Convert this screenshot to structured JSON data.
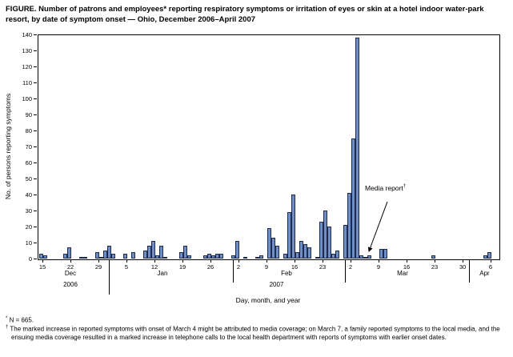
{
  "title": "FIGURE. Number of patrons and employees* reporting respiratory symptoms or irritation of eyes or skin at a hotel indoor water-park resort, by date of symptom onset — Ohio, December 2006–April 2007",
  "chart_data": {
    "type": "bar",
    "title": "Number of patrons and employees reporting respiratory symptoms or irritation of eyes or skin, by date of symptom onset",
    "xlabel": "Day, month, and year",
    "ylabel": "No. of persons reporting symptoms",
    "ylim": [
      0,
      140
    ],
    "ytick_step": 10,
    "grid": false,
    "bar_color": "#6d8ec6",
    "bar_border_color": "#1f2b4d",
    "x_ticks": [
      {
        "m": "Dec",
        "d": 15
      },
      {
        "m": "Dec",
        "d": 22
      },
      {
        "m": "Dec",
        "d": 29
      },
      {
        "m": "Jan",
        "d": 5
      },
      {
        "m": "Jan",
        "d": 12
      },
      {
        "m": "Jan",
        "d": 19
      },
      {
        "m": "Jan",
        "d": 26
      },
      {
        "m": "Feb",
        "d": 2
      },
      {
        "m": "Feb",
        "d": 9
      },
      {
        "m": "Feb",
        "d": 16
      },
      {
        "m": "Feb",
        "d": 23
      },
      {
        "m": "Mar",
        "d": 2
      },
      {
        "m": "Mar",
        "d": 9
      },
      {
        "m": "Mar",
        "d": 16
      },
      {
        "m": "Mar",
        "d": 23
      },
      {
        "m": "Mar",
        "d": 30
      },
      {
        "m": "Apr",
        "d": 6
      }
    ],
    "month_labels": [
      "Dec",
      "Jan",
      "Feb",
      "Mar",
      "Apr"
    ],
    "year_labels": [
      "2006",
      "2007"
    ],
    "bars": [
      {
        "m": "Dec",
        "d": 15,
        "v": 3
      },
      {
        "m": "Dec",
        "d": 16,
        "v": 2
      },
      {
        "m": "Dec",
        "d": 21,
        "v": 3
      },
      {
        "m": "Dec",
        "d": 22,
        "v": 7
      },
      {
        "m": "Dec",
        "d": 25,
        "v": 1
      },
      {
        "m": "Dec",
        "d": 26,
        "v": 1
      },
      {
        "m": "Dec",
        "d": 29,
        "v": 4
      },
      {
        "m": "Dec",
        "d": 30,
        "v": 1
      },
      {
        "m": "Dec",
        "d": 31,
        "v": 5
      },
      {
        "m": "Jan",
        "d": 1,
        "v": 8
      },
      {
        "m": "Jan",
        "d": 2,
        "v": 3
      },
      {
        "m": "Jan",
        "d": 5,
        "v": 3
      },
      {
        "m": "Jan",
        "d": 7,
        "v": 4
      },
      {
        "m": "Jan",
        "d": 10,
        "v": 5
      },
      {
        "m": "Jan",
        "d": 11,
        "v": 8
      },
      {
        "m": "Jan",
        "d": 12,
        "v": 11
      },
      {
        "m": "Jan",
        "d": 13,
        "v": 2
      },
      {
        "m": "Jan",
        "d": 14,
        "v": 8
      },
      {
        "m": "Jan",
        "d": 15,
        "v": 1
      },
      {
        "m": "Jan",
        "d": 19,
        "v": 4
      },
      {
        "m": "Jan",
        "d": 20,
        "v": 8
      },
      {
        "m": "Jan",
        "d": 21,
        "v": 2
      },
      {
        "m": "Jan",
        "d": 25,
        "v": 2
      },
      {
        "m": "Jan",
        "d": 26,
        "v": 3
      },
      {
        "m": "Jan",
        "d": 27,
        "v": 2
      },
      {
        "m": "Jan",
        "d": 28,
        "v": 3
      },
      {
        "m": "Jan",
        "d": 29,
        "v": 3
      },
      {
        "m": "Feb",
        "d": 1,
        "v": 2
      },
      {
        "m": "Feb",
        "d": 2,
        "v": 11
      },
      {
        "m": "Feb",
        "d": 4,
        "v": 1
      },
      {
        "m": "Feb",
        "d": 7,
        "v": 1
      },
      {
        "m": "Feb",
        "d": 8,
        "v": 2
      },
      {
        "m": "Feb",
        "d": 10,
        "v": 19
      },
      {
        "m": "Feb",
        "d": 11,
        "v": 13
      },
      {
        "m": "Feb",
        "d": 12,
        "v": 8
      },
      {
        "m": "Feb",
        "d": 14,
        "v": 3
      },
      {
        "m": "Feb",
        "d": 15,
        "v": 29
      },
      {
        "m": "Feb",
        "d": 16,
        "v": 40
      },
      {
        "m": "Feb",
        "d": 17,
        "v": 4
      },
      {
        "m": "Feb",
        "d": 18,
        "v": 11
      },
      {
        "m": "Feb",
        "d": 19,
        "v": 9
      },
      {
        "m": "Feb",
        "d": 20,
        "v": 7
      },
      {
        "m": "Feb",
        "d": 22,
        "v": 1
      },
      {
        "m": "Feb",
        "d": 23,
        "v": 23
      },
      {
        "m": "Feb",
        "d": 24,
        "v": 30
      },
      {
        "m": "Feb",
        "d": 25,
        "v": 20
      },
      {
        "m": "Feb",
        "d": 26,
        "v": 3
      },
      {
        "m": "Feb",
        "d": 27,
        "v": 5
      },
      {
        "m": "Mar",
        "d": 1,
        "v": 21
      },
      {
        "m": "Mar",
        "d": 2,
        "v": 41
      },
      {
        "m": "Mar",
        "d": 3,
        "v": 75
      },
      {
        "m": "Mar",
        "d": 4,
        "v": 138
      },
      {
        "m": "Mar",
        "d": 5,
        "v": 2
      },
      {
        "m": "Mar",
        "d": 6,
        "v": 1
      },
      {
        "m": "Mar",
        "d": 7,
        "v": 2
      },
      {
        "m": "Mar",
        "d": 10,
        "v": 6
      },
      {
        "m": "Mar",
        "d": 11,
        "v": 6
      },
      {
        "m": "Mar",
        "d": 23,
        "v": 2
      },
      {
        "m": "Apr",
        "d": 5,
        "v": 2
      },
      {
        "m": "Apr",
        "d": 6,
        "v": 4
      }
    ],
    "annotation": {
      "text": "Media report",
      "marker": "†",
      "points_to": {
        "m": "Mar",
        "d": 7
      }
    },
    "legend": "none"
  },
  "footnotes": [
    {
      "marker": "*",
      "text": "N = 665."
    },
    {
      "marker": "†",
      "text": "The marked increase in reported symptoms with onset of March 4 might be attributed to media coverage; on March 7, a family reported symptoms to the local media, and the ensuing media coverage resulted in a marked increase in telephone calls to the local health department with reports of symptoms with earlier onset dates."
    }
  ]
}
